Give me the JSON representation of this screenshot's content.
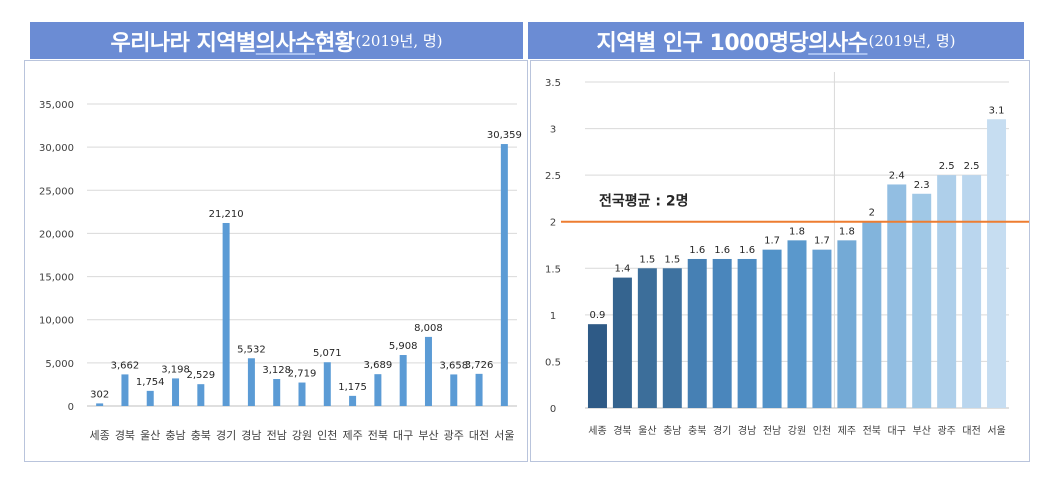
{
  "left_title": {
    "main": "우리나라 지역별 ",
    "highlight": "의사수",
    "tail": " 현황",
    "unit": "(2019년, 명)"
  },
  "right_title": {
    "main": "지역별 인구 1000명당 ",
    "highlight": "의사수",
    "unit": "(2019년, 명)"
  },
  "colors": {
    "banner": "#6b8cd4",
    "bar_left": "#5b9bd5",
    "avg_line": "#ed7d31"
  },
  "chart_data": [
    {
      "type": "bar",
      "categories": [
        "세종",
        "경북",
        "울산",
        "충남",
        "충북",
        "경기",
        "경남",
        "전남",
        "강원",
        "인천",
        "제주",
        "전북",
        "대구",
        "부산",
        "광주",
        "대전",
        "서울"
      ],
      "values": [
        302,
        3662,
        1754,
        3198,
        2529,
        21210,
        5532,
        3128,
        2719,
        5071,
        1175,
        3689,
        5908,
        8008,
        3658,
        3726,
        30359
      ],
      "labels": [
        "302",
        "3,662",
        "1,754",
        "3,198",
        "2,529",
        "21,210",
        "5,532",
        "3,128",
        "2,719",
        "5,071",
        "1,175",
        "3,689",
        "5,908",
        "8,008",
        "3,658",
        "3,726",
        "30,359"
      ],
      "yticks": [
        "0",
        "5,000",
        "10,000",
        "15,000",
        "20,000",
        "25,000",
        "30,000",
        "35,000"
      ],
      "ylim": [
        0,
        35000
      ],
      "grid": true
    },
    {
      "type": "bar",
      "categories": [
        "세종",
        "경북",
        "울산",
        "충남",
        "충북",
        "경기",
        "경남",
        "전남",
        "강원",
        "인천",
        "제주",
        "전북",
        "대구",
        "부산",
        "광주",
        "대전",
        "서울"
      ],
      "values": [
        0.9,
        1.4,
        1.5,
        1.5,
        1.6,
        1.6,
        1.6,
        1.7,
        1.8,
        1.7,
        1.8,
        2,
        2.4,
        2.3,
        2.5,
        2.5,
        3.1
      ],
      "labels": [
        "0.9",
        "1.4",
        "1.5",
        "1.5",
        "1.6",
        "1.6",
        "1.6",
        "1.7",
        "1.8",
        "1.7",
        "1.8",
        "2",
        "2.4",
        "2.3",
        "2.5",
        "2.5",
        "3.1"
      ],
      "bar_colors": [
        "#2e5a86",
        "#35648f",
        "#3c6e9a",
        "#3e72a0",
        "#4680b4",
        "#4a86bc",
        "#4e8cc2",
        "#5292c8",
        "#5a98cc",
        "#66a0d2",
        "#74aad6",
        "#82b4dc",
        "#92bee2",
        "#a0c8e6",
        "#aecfea",
        "#bad6ee",
        "#c6ddf1"
      ],
      "yticks": [
        "0",
        "0.5",
        "1",
        "1.5",
        "2",
        "2.5",
        "3",
        "3.5"
      ],
      "ylim": [
        0,
        3.5
      ],
      "grid": true,
      "reference_line": {
        "value": 2,
        "label": "전국평균 : 2명"
      }
    }
  ]
}
